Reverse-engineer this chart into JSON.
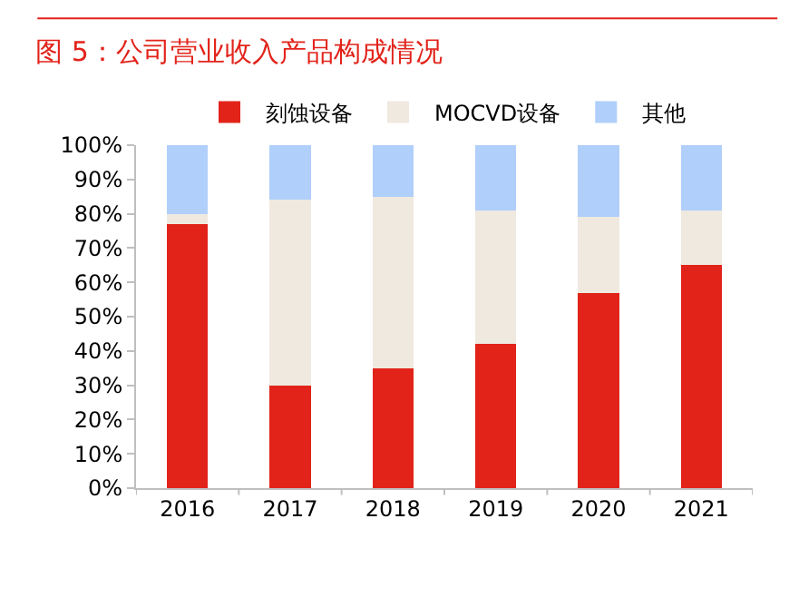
{
  "chart_data": {
    "type": "bar",
    "stacked": true,
    "title": "图 5：公司营业收入产品构成情况",
    "categories": [
      "2016",
      "2017",
      "2018",
      "2019",
      "2020",
      "2021"
    ],
    "series": [
      {
        "name": "刻蚀设备",
        "color": "#e2231a",
        "values": [
          77,
          30,
          35,
          42,
          57,
          65
        ]
      },
      {
        "name": "MOCVD设备",
        "color": "#efe9df",
        "values": [
          3,
          54,
          50,
          39,
          22,
          16
        ]
      },
      {
        "name": "其他",
        "color": "#b0cffb",
        "values": [
          20,
          16,
          15,
          19,
          21,
          19
        ]
      }
    ],
    "ylim": [
      0,
      100
    ],
    "yticks": [
      {
        "value": 0,
        "label": "0%"
      },
      {
        "value": 10,
        "label": "10%"
      },
      {
        "value": 20,
        "label": "20%"
      },
      {
        "value": 30,
        "label": "30%"
      },
      {
        "value": 40,
        "label": "40%"
      },
      {
        "value": 50,
        "label": "50%"
      },
      {
        "value": 60,
        "label": "60%"
      },
      {
        "value": 70,
        "label": "70%"
      },
      {
        "value": 80,
        "label": "80%"
      },
      {
        "value": 90,
        "label": "90%"
      },
      {
        "value": 100,
        "label": "100%"
      }
    ],
    "legend": "top"
  }
}
